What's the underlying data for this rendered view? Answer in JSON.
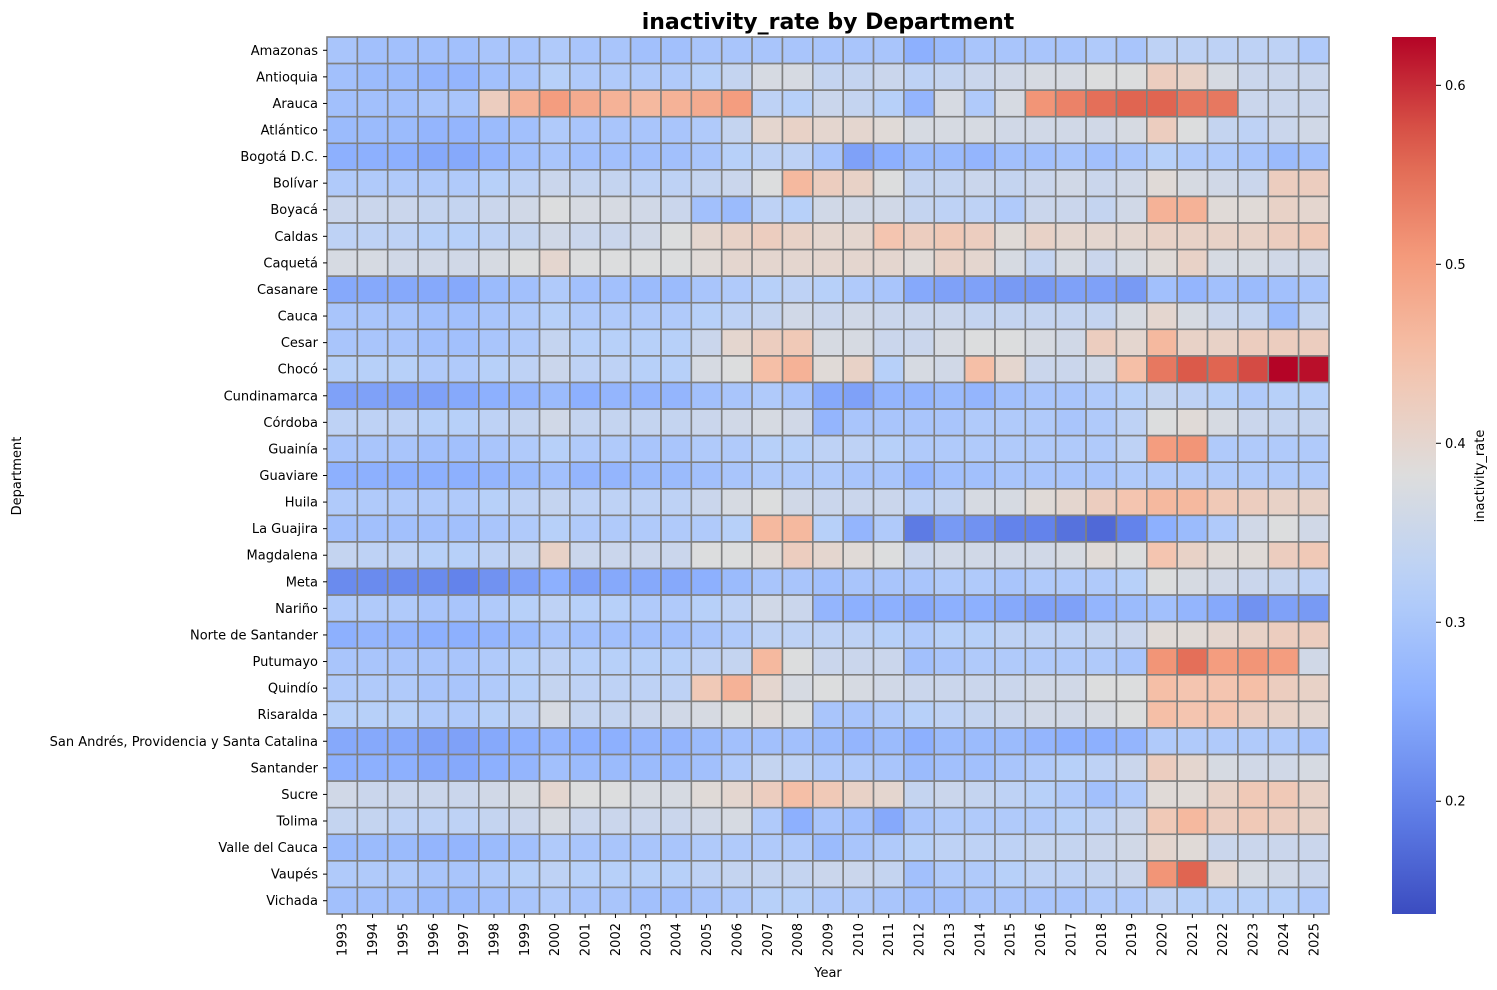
{
  "chart_data": {
    "type": "heatmap",
    "title": "inactivity_rate by Department",
    "xlabel": "Year",
    "ylabel": "Department",
    "colorbar_label": "inactivity_rate",
    "colormap": "coolwarm",
    "vmin": 0.137,
    "vmax": 0.627,
    "colorbar_ticks": [
      0.2,
      0.3,
      0.4,
      0.5,
      0.6
    ],
    "grid_color": "#808080",
    "x": [
      1993,
      1994,
      1995,
      1996,
      1997,
      1998,
      1999,
      2000,
      2001,
      2002,
      2003,
      2004,
      2005,
      2006,
      2007,
      2008,
      2009,
      2010,
      2011,
      2012,
      2013,
      2014,
      2015,
      2016,
      2017,
      2018,
      2019,
      2020,
      2021,
      2022,
      2023,
      2024,
      2025
    ],
    "y": [
      "Amazonas",
      "Antioquia",
      "Arauca",
      "Atlántico",
      "Bogotá D.C.",
      "Bolívar",
      "Boyacá",
      "Caldas",
      "Caquetá",
      "Casanare",
      "Cauca",
      "Cesar",
      "Chocó",
      "Cundinamarca",
      "Córdoba",
      "Guainía",
      "Guaviare",
      "Huila",
      "La Guajira",
      "Magdalena",
      "Meta",
      "Nariño",
      "Norte de Santander",
      "Putumayo",
      "Quindío",
      "Risaralda",
      "San Andrés, Providencia y Santa Catalina",
      "Santander",
      "Sucre",
      "Tolima",
      "Valle del Cauca",
      "Vaupés",
      "Vichada"
    ],
    "values": [
      [
        0.3,
        0.29,
        0.29,
        0.29,
        0.29,
        0.3,
        0.3,
        0.31,
        0.3,
        0.3,
        0.29,
        0.29,
        0.3,
        0.3,
        0.3,
        0.3,
        0.3,
        0.3,
        0.3,
        0.26,
        0.28,
        0.3,
        0.3,
        0.3,
        0.3,
        0.31,
        0.3,
        0.33,
        0.33,
        0.33,
        0.33,
        0.33,
        0.31
      ],
      [
        0.29,
        0.28,
        0.28,
        0.27,
        0.27,
        0.29,
        0.3,
        0.32,
        0.31,
        0.31,
        0.31,
        0.31,
        0.32,
        0.34,
        0.37,
        0.37,
        0.34,
        0.34,
        0.35,
        0.33,
        0.34,
        0.35,
        0.36,
        0.37,
        0.37,
        0.38,
        0.38,
        0.42,
        0.41,
        0.37,
        0.35,
        0.35,
        0.35
      ],
      [
        0.29,
        0.29,
        0.29,
        0.3,
        0.3,
        0.42,
        0.47,
        0.5,
        0.48,
        0.47,
        0.46,
        0.47,
        0.48,
        0.5,
        0.33,
        0.32,
        0.35,
        0.34,
        0.32,
        0.27,
        0.37,
        0.31,
        0.37,
        0.51,
        0.53,
        0.55,
        0.56,
        0.56,
        0.54,
        0.54,
        0.35,
        0.35,
        0.35
      ],
      [
        0.28,
        0.28,
        0.28,
        0.27,
        0.27,
        0.28,
        0.29,
        0.31,
        0.3,
        0.3,
        0.3,
        0.3,
        0.31,
        0.34,
        0.4,
        0.41,
        0.4,
        0.4,
        0.39,
        0.37,
        0.37,
        0.37,
        0.36,
        0.36,
        0.36,
        0.36,
        0.37,
        0.42,
        0.38,
        0.34,
        0.33,
        0.35,
        0.36
      ],
      [
        0.26,
        0.26,
        0.26,
        0.25,
        0.25,
        0.27,
        0.29,
        0.3,
        0.29,
        0.29,
        0.29,
        0.29,
        0.3,
        0.32,
        0.33,
        0.33,
        0.3,
        0.24,
        0.26,
        0.28,
        0.28,
        0.27,
        0.29,
        0.29,
        0.3,
        0.29,
        0.3,
        0.32,
        0.31,
        0.31,
        0.3,
        0.28,
        0.29
      ],
      [
        0.31,
        0.31,
        0.31,
        0.31,
        0.31,
        0.32,
        0.33,
        0.35,
        0.34,
        0.34,
        0.33,
        0.33,
        0.34,
        0.35,
        0.38,
        0.46,
        0.42,
        0.41,
        0.38,
        0.34,
        0.34,
        0.35,
        0.34,
        0.35,
        0.36,
        0.35,
        0.36,
        0.39,
        0.37,
        0.36,
        0.35,
        0.42,
        0.42
      ],
      [
        0.35,
        0.35,
        0.35,
        0.34,
        0.34,
        0.35,
        0.36,
        0.38,
        0.37,
        0.37,
        0.36,
        0.35,
        0.29,
        0.28,
        0.33,
        0.32,
        0.36,
        0.36,
        0.36,
        0.34,
        0.33,
        0.33,
        0.31,
        0.35,
        0.35,
        0.34,
        0.36,
        0.47,
        0.47,
        0.39,
        0.39,
        0.41,
        0.4
      ],
      [
        0.33,
        0.33,
        0.33,
        0.32,
        0.32,
        0.33,
        0.34,
        0.36,
        0.35,
        0.35,
        0.36,
        0.38,
        0.4,
        0.41,
        0.42,
        0.41,
        0.4,
        0.4,
        0.44,
        0.42,
        0.43,
        0.42,
        0.39,
        0.41,
        0.4,
        0.4,
        0.4,
        0.41,
        0.41,
        0.41,
        0.41,
        0.42,
        0.43
      ],
      [
        0.37,
        0.37,
        0.36,
        0.36,
        0.36,
        0.37,
        0.38,
        0.4,
        0.38,
        0.38,
        0.38,
        0.38,
        0.39,
        0.4,
        0.4,
        0.4,
        0.4,
        0.4,
        0.4,
        0.39,
        0.41,
        0.4,
        0.37,
        0.34,
        0.37,
        0.35,
        0.37,
        0.39,
        0.41,
        0.37,
        0.37,
        0.36,
        0.36
      ],
      [
        0.25,
        0.25,
        0.25,
        0.25,
        0.25,
        0.28,
        0.29,
        0.31,
        0.29,
        0.29,
        0.28,
        0.28,
        0.3,
        0.31,
        0.32,
        0.33,
        0.32,
        0.31,
        0.3,
        0.25,
        0.24,
        0.24,
        0.23,
        0.23,
        0.24,
        0.24,
        0.23,
        0.29,
        0.27,
        0.29,
        0.28,
        0.29,
        0.3
      ],
      [
        0.3,
        0.3,
        0.3,
        0.29,
        0.29,
        0.3,
        0.31,
        0.32,
        0.31,
        0.31,
        0.31,
        0.31,
        0.32,
        0.33,
        0.34,
        0.36,
        0.35,
        0.36,
        0.35,
        0.35,
        0.35,
        0.34,
        0.34,
        0.34,
        0.34,
        0.34,
        0.37,
        0.4,
        0.37,
        0.35,
        0.34,
        0.28,
        0.34
      ],
      [
        0.3,
        0.3,
        0.3,
        0.29,
        0.29,
        0.3,
        0.31,
        0.34,
        0.32,
        0.32,
        0.32,
        0.32,
        0.35,
        0.4,
        0.42,
        0.43,
        0.37,
        0.37,
        0.35,
        0.35,
        0.37,
        0.38,
        0.38,
        0.37,
        0.36,
        0.42,
        0.4,
        0.46,
        0.41,
        0.41,
        0.42,
        0.42,
        0.42
      ],
      [
        0.32,
        0.32,
        0.32,
        0.31,
        0.31,
        0.32,
        0.33,
        0.35,
        0.33,
        0.33,
        0.32,
        0.32,
        0.37,
        0.38,
        0.45,
        0.47,
        0.39,
        0.41,
        0.32,
        0.37,
        0.36,
        0.45,
        0.4,
        0.35,
        0.35,
        0.36,
        0.45,
        0.54,
        0.57,
        0.56,
        0.58,
        0.63,
        0.62
      ],
      [
        0.24,
        0.24,
        0.24,
        0.24,
        0.25,
        0.26,
        0.27,
        0.28,
        0.26,
        0.27,
        0.27,
        0.27,
        0.29,
        0.3,
        0.31,
        0.3,
        0.25,
        0.24,
        0.27,
        0.27,
        0.28,
        0.27,
        0.29,
        0.3,
        0.3,
        0.31,
        0.32,
        0.34,
        0.33,
        0.32,
        0.31,
        0.32,
        0.32
      ],
      [
        0.33,
        0.33,
        0.33,
        0.32,
        0.32,
        0.33,
        0.34,
        0.36,
        0.34,
        0.34,
        0.34,
        0.34,
        0.35,
        0.36,
        0.37,
        0.36,
        0.27,
        0.3,
        0.3,
        0.3,
        0.3,
        0.31,
        0.31,
        0.31,
        0.3,
        0.31,
        0.33,
        0.38,
        0.39,
        0.37,
        0.35,
        0.34,
        0.34
      ],
      [
        0.3,
        0.3,
        0.3,
        0.29,
        0.29,
        0.3,
        0.31,
        0.32,
        0.31,
        0.31,
        0.3,
        0.3,
        0.31,
        0.31,
        0.32,
        0.32,
        0.33,
        0.33,
        0.32,
        0.31,
        0.31,
        0.31,
        0.31,
        0.31,
        0.31,
        0.31,
        0.33,
        0.5,
        0.51,
        0.31,
        0.31,
        0.31,
        0.31
      ],
      [
        0.26,
        0.26,
        0.26,
        0.26,
        0.26,
        0.27,
        0.28,
        0.29,
        0.27,
        0.27,
        0.28,
        0.28,
        0.29,
        0.3,
        0.31,
        0.31,
        0.31,
        0.3,
        0.3,
        0.27,
        0.29,
        0.29,
        0.3,
        0.3,
        0.3,
        0.3,
        0.31,
        0.31,
        0.31,
        0.31,
        0.31,
        0.31,
        0.31
      ],
      [
        0.31,
        0.31,
        0.31,
        0.31,
        0.31,
        0.32,
        0.33,
        0.34,
        0.33,
        0.33,
        0.33,
        0.33,
        0.35,
        0.37,
        0.38,
        0.36,
        0.35,
        0.35,
        0.35,
        0.33,
        0.34,
        0.37,
        0.37,
        0.39,
        0.4,
        0.42,
        0.44,
        0.46,
        0.46,
        0.43,
        0.42,
        0.41,
        0.41
      ],
      [
        0.29,
        0.29,
        0.29,
        0.29,
        0.29,
        0.3,
        0.31,
        0.32,
        0.31,
        0.31,
        0.31,
        0.31,
        0.31,
        0.32,
        0.46,
        0.46,
        0.32,
        0.27,
        0.31,
        0.19,
        0.23,
        0.22,
        0.2,
        0.2,
        0.18,
        0.17,
        0.2,
        0.26,
        0.28,
        0.31,
        0.36,
        0.38,
        0.36
      ],
      [
        0.34,
        0.33,
        0.33,
        0.32,
        0.32,
        0.33,
        0.34,
        0.41,
        0.35,
        0.35,
        0.35,
        0.35,
        0.38,
        0.38,
        0.39,
        0.42,
        0.4,
        0.39,
        0.38,
        0.35,
        0.36,
        0.36,
        0.36,
        0.36,
        0.37,
        0.39,
        0.38,
        0.44,
        0.41,
        0.39,
        0.39,
        0.42,
        0.43
      ],
      [
        0.21,
        0.21,
        0.21,
        0.21,
        0.2,
        0.22,
        0.24,
        0.26,
        0.24,
        0.25,
        0.25,
        0.25,
        0.26,
        0.28,
        0.3,
        0.3,
        0.29,
        0.3,
        0.3,
        0.3,
        0.31,
        0.31,
        0.3,
        0.31,
        0.31,
        0.31,
        0.32,
        0.38,
        0.37,
        0.36,
        0.35,
        0.34,
        0.33
      ],
      [
        0.31,
        0.31,
        0.31,
        0.3,
        0.3,
        0.31,
        0.32,
        0.33,
        0.32,
        0.32,
        0.31,
        0.31,
        0.32,
        0.33,
        0.36,
        0.35,
        0.27,
        0.26,
        0.26,
        0.25,
        0.26,
        0.26,
        0.25,
        0.24,
        0.24,
        0.27,
        0.28,
        0.29,
        0.27,
        0.25,
        0.22,
        0.24,
        0.23
      ],
      [
        0.26,
        0.27,
        0.27,
        0.26,
        0.26,
        0.27,
        0.28,
        0.3,
        0.29,
        0.29,
        0.29,
        0.29,
        0.3,
        0.31,
        0.33,
        0.33,
        0.33,
        0.33,
        0.32,
        0.31,
        0.32,
        0.32,
        0.33,
        0.33,
        0.33,
        0.34,
        0.35,
        0.39,
        0.39,
        0.4,
        0.41,
        0.42,
        0.42
      ],
      [
        0.3,
        0.3,
        0.3,
        0.3,
        0.3,
        0.31,
        0.32,
        0.33,
        0.32,
        0.32,
        0.32,
        0.32,
        0.33,
        0.34,
        0.46,
        0.38,
        0.35,
        0.35,
        0.35,
        0.29,
        0.3,
        0.31,
        0.31,
        0.31,
        0.31,
        0.31,
        0.3,
        0.51,
        0.55,
        0.5,
        0.51,
        0.5,
        0.36
      ],
      [
        0.31,
        0.31,
        0.31,
        0.3,
        0.3,
        0.31,
        0.32,
        0.34,
        0.33,
        0.33,
        0.33,
        0.33,
        0.43,
        0.47,
        0.4,
        0.37,
        0.38,
        0.37,
        0.36,
        0.35,
        0.35,
        0.35,
        0.35,
        0.36,
        0.36,
        0.38,
        0.38,
        0.45,
        0.44,
        0.44,
        0.45,
        0.42,
        0.41
      ],
      [
        0.32,
        0.32,
        0.32,
        0.31,
        0.31,
        0.32,
        0.33,
        0.37,
        0.34,
        0.34,
        0.35,
        0.36,
        0.37,
        0.38,
        0.39,
        0.38,
        0.3,
        0.3,
        0.31,
        0.32,
        0.33,
        0.34,
        0.35,
        0.36,
        0.36,
        0.37,
        0.38,
        0.45,
        0.44,
        0.44,
        0.42,
        0.41,
        0.4
      ],
      [
        0.25,
        0.25,
        0.25,
        0.24,
        0.24,
        0.25,
        0.26,
        0.27,
        0.26,
        0.26,
        0.27,
        0.27,
        0.28,
        0.29,
        0.29,
        0.29,
        0.28,
        0.27,
        0.28,
        0.26,
        0.28,
        0.28,
        0.28,
        0.27,
        0.26,
        0.26,
        0.27,
        0.31,
        0.31,
        0.31,
        0.31,
        0.31,
        0.3
      ],
      [
        0.26,
        0.26,
        0.26,
        0.25,
        0.25,
        0.26,
        0.27,
        0.29,
        0.28,
        0.28,
        0.28,
        0.28,
        0.29,
        0.31,
        0.34,
        0.33,
        0.31,
        0.31,
        0.3,
        0.28,
        0.29,
        0.29,
        0.3,
        0.31,
        0.32,
        0.33,
        0.35,
        0.42,
        0.4,
        0.37,
        0.36,
        0.36,
        0.37
      ],
      [
        0.36,
        0.35,
        0.35,
        0.35,
        0.35,
        0.36,
        0.37,
        0.4,
        0.38,
        0.38,
        0.37,
        0.37,
        0.39,
        0.4,
        0.42,
        0.45,
        0.43,
        0.41,
        0.4,
        0.34,
        0.35,
        0.34,
        0.33,
        0.32,
        0.31,
        0.29,
        0.31,
        0.39,
        0.39,
        0.41,
        0.43,
        0.43,
        0.41
      ],
      [
        0.34,
        0.34,
        0.33,
        0.33,
        0.33,
        0.34,
        0.35,
        0.37,
        0.35,
        0.35,
        0.35,
        0.35,
        0.36,
        0.37,
        0.31,
        0.26,
        0.3,
        0.29,
        0.25,
        0.3,
        0.31,
        0.31,
        0.31,
        0.31,
        0.32,
        0.33,
        0.35,
        0.43,
        0.46,
        0.42,
        0.43,
        0.42,
        0.41
      ],
      [
        0.28,
        0.28,
        0.28,
        0.27,
        0.27,
        0.28,
        0.29,
        0.31,
        0.3,
        0.3,
        0.3,
        0.3,
        0.31,
        0.31,
        0.31,
        0.31,
        0.28,
        0.3,
        0.31,
        0.32,
        0.33,
        0.33,
        0.33,
        0.34,
        0.34,
        0.35,
        0.36,
        0.4,
        0.39,
        0.35,
        0.35,
        0.35,
        0.35
      ],
      [
        0.31,
        0.31,
        0.31,
        0.3,
        0.3,
        0.31,
        0.32,
        0.33,
        0.32,
        0.32,
        0.32,
        0.32,
        0.33,
        0.34,
        0.34,
        0.34,
        0.35,
        0.35,
        0.34,
        0.29,
        0.31,
        0.31,
        0.32,
        0.33,
        0.33,
        0.34,
        0.35,
        0.51,
        0.56,
        0.4,
        0.37,
        0.36,
        0.35
      ],
      [
        0.29,
        0.29,
        0.29,
        0.28,
        0.28,
        0.29,
        0.3,
        0.31,
        0.3,
        0.3,
        0.29,
        0.29,
        0.3,
        0.31,
        0.32,
        0.32,
        0.31,
        0.31,
        0.3,
        0.29,
        0.29,
        0.3,
        0.3,
        0.3,
        0.3,
        0.31,
        0.31,
        0.33,
        0.32,
        0.32,
        0.32,
        0.32,
        0.31
      ]
    ]
  }
}
